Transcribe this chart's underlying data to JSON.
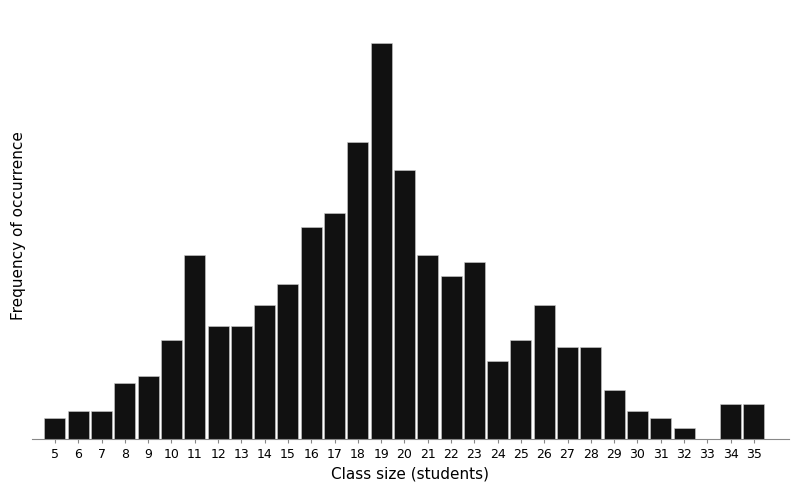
{
  "class_sizes": [
    5,
    6,
    7,
    8,
    9,
    10,
    11,
    12,
    13,
    14,
    15,
    16,
    17,
    18,
    19,
    20,
    21,
    22,
    23,
    24,
    25,
    26,
    27,
    28,
    29,
    30,
    31,
    32,
    33,
    34,
    35
  ],
  "frequencies": [
    1.5,
    2,
    2,
    4,
    4.5,
    7,
    13,
    8,
    8,
    9.5,
    11,
    15,
    16,
    21,
    28,
    19,
    13,
    11.5,
    12.5,
    5.5,
    7,
    9.5,
    6.5,
    6.5,
    3.5,
    2,
    1.5,
    0.8,
    0,
    2.5,
    2.5
  ],
  "bar_color": "#111111",
  "edge_color": "#cccccc",
  "xlabel": "Class size (students)",
  "ylabel": "Frequency of occurrence",
  "background_color": "#ffffff",
  "xlabel_fontsize": 11,
  "ylabel_fontsize": 11,
  "tick_fontsize": 9,
  "bar_width": 0.9
}
